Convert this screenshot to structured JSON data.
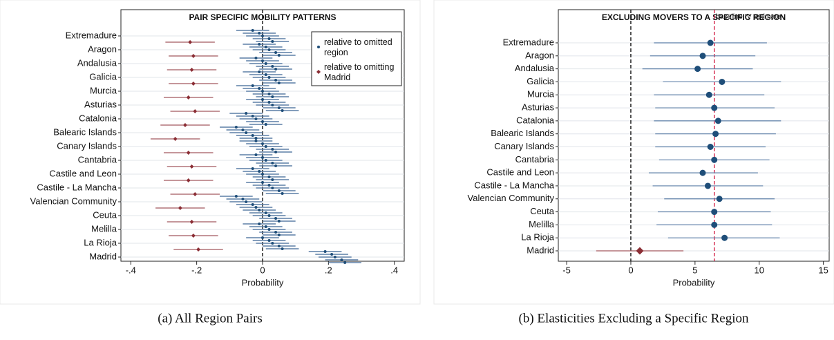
{
  "chart_data": [
    {
      "type": "dotplot",
      "title": "PAIR SPECIFIC MOBILITY PATTERNS",
      "x_label": "Probability",
      "categories": [
        "Extremadure",
        "Aragon",
        "Andalusia",
        "Galicia",
        "Murcia",
        "Asturias",
        "Catalonia",
        "Balearic Islands",
        "Canary Islands",
        "Cantabria",
        "Castile and Leon",
        "Castile - La Mancha",
        "Valencian Community",
        "Ceuta",
        "Melilla",
        "La Rioja",
        "Madrid"
      ],
      "series": [
        {
          "name": "relative to omitted region",
          "color": "#1f4e79",
          "error": 0.05,
          "values": [
            [
              -0.03,
              -0.01,
              0,
              0.02,
              0.03
            ],
            [
              -0.01,
              0.01,
              0.02,
              0.04,
              0.05
            ],
            [
              -0.02,
              0,
              0.01,
              0.03,
              0.04
            ],
            [
              -0.01,
              0.01,
              0.02,
              0.04,
              0.05
            ],
            [
              -0.03,
              -0.01,
              0,
              0.02,
              0.03
            ],
            [
              0,
              0.02,
              0.03,
              0.05,
              0.06
            ],
            [
              -0.05,
              -0.03,
              -0.02,
              0,
              0.01
            ],
            [
              -0.08,
              -0.06,
              -0.05,
              -0.03,
              -0.02
            ],
            [
              -0.02,
              0,
              0.01,
              0.03,
              0.04
            ],
            [
              -0.02,
              0,
              0.01,
              0.03,
              0.04
            ],
            [
              -0.03,
              -0.01,
              0,
              0.02,
              0.03
            ],
            [
              0,
              0.02,
              0.03,
              0.05,
              0.06
            ],
            [
              -0.08,
              -0.06,
              -0.05,
              -0.03,
              -0.02
            ],
            [
              -0.01,
              0.01,
              0.02,
              0.04,
              0.05
            ],
            [
              -0.01,
              0.01,
              0.02,
              0.04,
              0.05
            ],
            [
              0,
              0.02,
              0.03,
              0.05,
              0.06
            ],
            [
              0.19,
              0.21,
              0.22,
              0.24,
              0.25
            ]
          ]
        },
        {
          "name": "relative to omitting Madrid",
          "color": "#8b2e35",
          "error": 0.075,
          "values": [
            -0.22,
            -0.21,
            -0.215,
            -0.21,
            -0.225,
            -0.205,
            -0.235,
            -0.265,
            -0.225,
            -0.215,
            -0.225,
            -0.205,
            -0.25,
            -0.215,
            -0.21,
            -0.195,
            null
          ]
        }
      ],
      "xlim": [
        -0.43,
        0.43
      ],
      "xticks": [
        {
          "value": -0.4,
          "label": "-.4"
        },
        {
          "value": -0.2,
          "label": "-.2"
        },
        0,
        {
          "value": 0.2,
          "label": ".2"
        },
        {
          "value": 0.4,
          "label": ".4"
        }
      ],
      "ref_line": 0,
      "grid": true,
      "legend": "top-right"
    },
    {
      "type": "ci",
      "title": "EXCLUDING MOVERS TO A SPECIFIC REGION",
      "x_label": "Probability",
      "categories": [
        "Extremadure",
        "Aragon",
        "Andalusia",
        "Galicia",
        "Murcia",
        "Asturias",
        "Catalonia",
        "Balearic Islands",
        "Canary Islands",
        "Cantabria",
        "Castile and Leon",
        "Castile - La Mancha",
        "Valencian Community",
        "Ceuta",
        "Melilla",
        "La Rioja",
        "Madrid"
      ],
      "values": [
        6.2,
        5.6,
        5.2,
        7.1,
        6.1,
        6.5,
        6.8,
        6.6,
        6.2,
        6.5,
        5.6,
        6.0,
        6.9,
        6.5,
        6.5,
        7.3,
        0.7
      ],
      "ci_low": [
        1.8,
        1.5,
        0.9,
        2.5,
        1.8,
        1.9,
        1.8,
        1.9,
        1.9,
        2.2,
        1.4,
        1.7,
        2.6,
        2.1,
        2.0,
        2.9,
        -2.7
      ],
      "ci_high": [
        10.6,
        9.7,
        9.5,
        11.7,
        10.4,
        11.2,
        11.7,
        11.3,
        10.5,
        10.8,
        9.9,
        10.3,
        11.2,
        10.9,
        11.0,
        11.6,
        4.1
      ],
      "colors": [
        "#1f4e79",
        "#1f4e79",
        "#1f4e79",
        "#1f4e79",
        "#1f4e79",
        "#1f4e79",
        "#1f4e79",
        "#1f4e79",
        "#1f4e79",
        "#1f4e79",
        "#1f4e79",
        "#1f4e79",
        "#1f4e79",
        "#1f4e79",
        "#1f4e79",
        "#1f4e79",
        "#8b2e35"
      ],
      "markers": [
        "circle",
        "circle",
        "circle",
        "circle",
        "circle",
        "circle",
        "circle",
        "circle",
        "circle",
        "circle",
        "circle",
        "circle",
        "circle",
        "circle",
        "circle",
        "circle",
        "diamond"
      ],
      "xlim": [
        -5.65,
        15.45
      ],
      "xticks": [
        -5,
        0,
        5,
        10,
        15
      ],
      "ref_line": 0,
      "baseline": 6.5,
      "baseline_label": "baseline IV estimate",
      "baseline_color": "#d0103a",
      "grid": true
    }
  ],
  "captions": [
    "(a)  All Region Pairs",
    "(b)  Elasticities Excluding a Specific Region"
  ]
}
